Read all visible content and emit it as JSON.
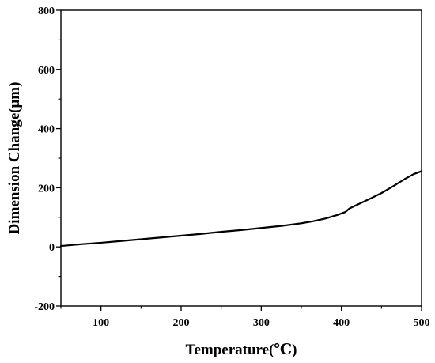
{
  "chart_data": {
    "type": "line",
    "title": "",
    "xlabel": "Temperature(℃)",
    "ylabel": "Dimension Change(μm)",
    "xlim": [
      50,
      500
    ],
    "ylim": [
      -200,
      800
    ],
    "x_ticks": [
      100,
      200,
      300,
      400,
      500
    ],
    "y_ticks": [
      -200,
      0,
      200,
      400,
      600,
      800
    ],
    "x_tick_labels": [
      "100",
      "200",
      "300",
      "400",
      "500"
    ],
    "y_tick_labels": [
      "-200",
      "0",
      "200",
      "400",
      "600",
      "800"
    ],
    "grid": false,
    "legend": "none",
    "line_color": "#000000",
    "series": [
      {
        "x": [
          50,
          75,
          100,
          125,
          150,
          175,
          200,
          225,
          250,
          275,
          300,
          325,
          350,
          365,
          380,
          395,
          405,
          410,
          420,
          435,
          450,
          465,
          480,
          490,
          500
        ],
        "y": [
          3,
          9,
          14,
          20,
          26,
          32,
          38,
          44,
          51,
          57,
          64,
          71,
          80,
          87,
          96,
          108,
          118,
          130,
          143,
          162,
          182,
          206,
          231,
          246,
          256
        ]
      }
    ]
  }
}
